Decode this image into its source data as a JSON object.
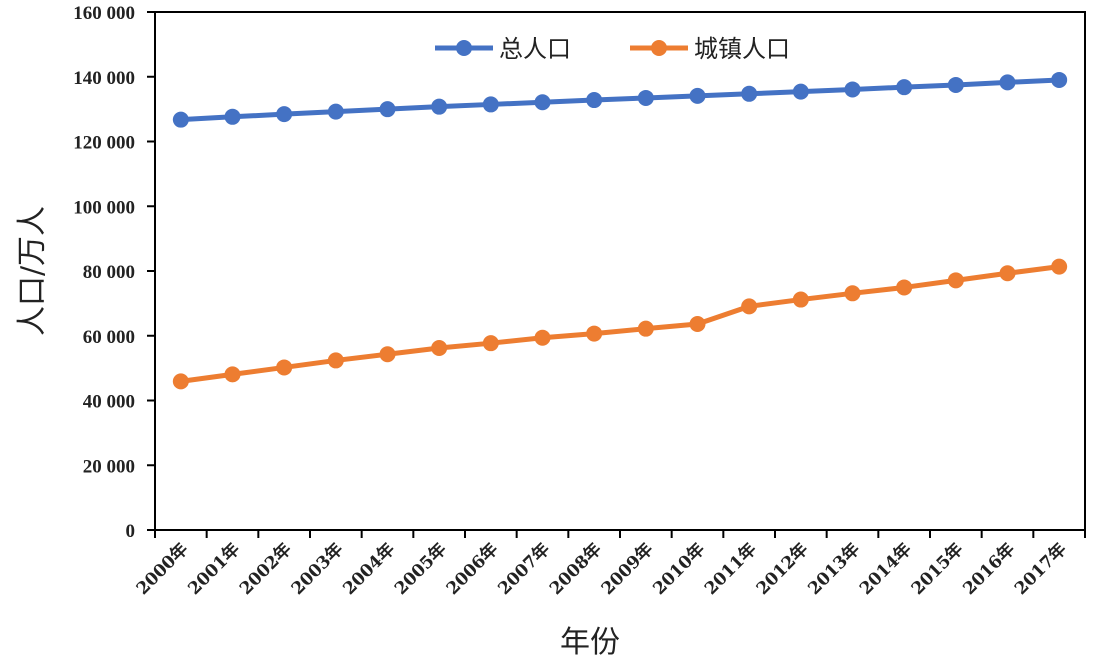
{
  "chart_data": {
    "type": "line",
    "categories": [
      "2000年",
      "2001年",
      "2002年",
      "2003年",
      "2004年",
      "2005年",
      "2006年",
      "2007年",
      "2008年",
      "2009年",
      "2010年",
      "2011年",
      "2012年",
      "2013年",
      "2014年",
      "2015年",
      "2016年",
      "2017年"
    ],
    "series": [
      {
        "name": "总人口",
        "color": "#4472c4",
        "values": [
          126743,
          127627,
          128453,
          129227,
          129988,
          130756,
          131448,
          132129,
          132802,
          133450,
          134091,
          134735,
          135404,
          136072,
          136782,
          137462,
          138271,
          139008
        ]
      },
      {
        "name": "城镇人口",
        "color": "#ed7d31",
        "values": [
          45906,
          48064,
          50212,
          52376,
          54283,
          56212,
          57706,
          59379,
          60667,
          62186,
          63626,
          69079,
          71182,
          73111,
          74916,
          77116,
          79298,
          81347
        ]
      }
    ],
    "xlabel": "年份",
    "ylabel": "人口/万人",
    "ylim": [
      0,
      160000
    ],
    "yticks": [
      0,
      20000,
      40000,
      60000,
      80000,
      100000,
      120000,
      140000,
      160000
    ],
    "ytick_labels": [
      "0",
      "20 000",
      "40 000",
      "60 000",
      "80 000",
      "100 000",
      "120 000",
      "140 000",
      "160 000"
    ],
    "legend_position": "top-center",
    "grid": false
  }
}
